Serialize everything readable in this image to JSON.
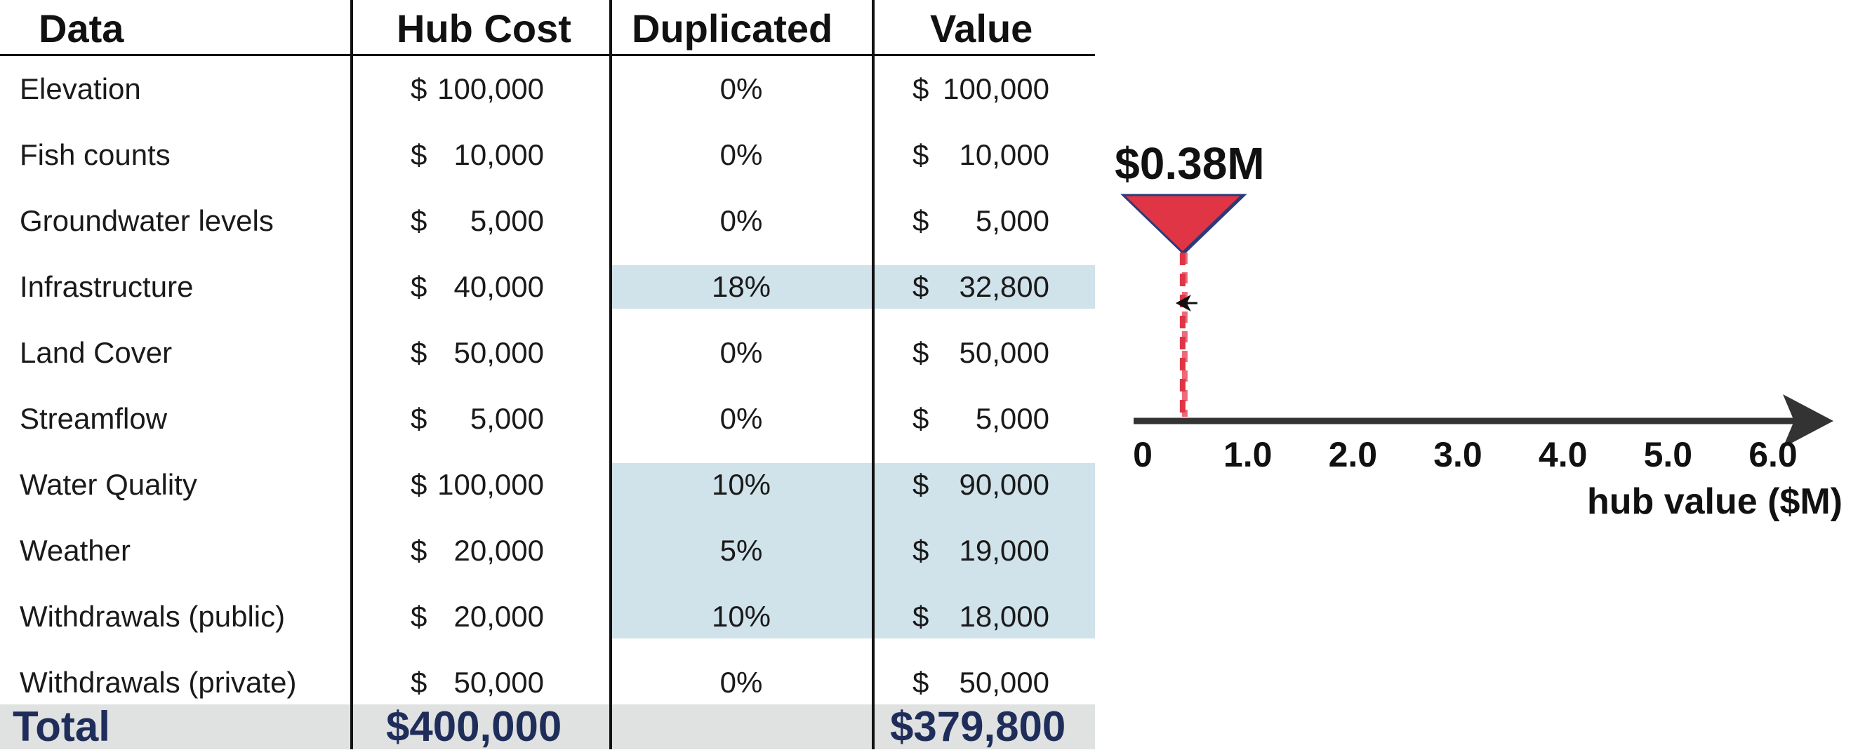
{
  "table": {
    "headers": [
      "Data",
      "Hub Cost",
      "Duplicated",
      "Value"
    ],
    "rows": [
      {
        "data": "Elevation",
        "cost_sym": "$",
        "cost_num": "100,000",
        "dup": "0%",
        "val_sym": "$",
        "val_num": "100,000",
        "highlight": false
      },
      {
        "data": "Fish counts",
        "cost_sym": "$",
        "cost_num": "10,000",
        "dup": "0%",
        "val_sym": "$",
        "val_num": "10,000",
        "highlight": false
      },
      {
        "data": "Groundwater levels",
        "cost_sym": "$",
        "cost_num": "5,000",
        "dup": "0%",
        "val_sym": "$",
        "val_num": "5,000",
        "highlight": false
      },
      {
        "data": "Infrastructure",
        "cost_sym": "$",
        "cost_num": "40,000",
        "dup": "18%",
        "val_sym": "$",
        "val_num": "32,800",
        "highlight": true
      },
      {
        "data": "Land Cover",
        "cost_sym": "$",
        "cost_num": "50,000",
        "dup": "0%",
        "val_sym": "$",
        "val_num": "50,000",
        "highlight": false
      },
      {
        "data": "Streamflow",
        "cost_sym": "$",
        "cost_num": "5,000",
        "dup": "0%",
        "val_sym": "$",
        "val_num": "5,000",
        "highlight": false
      },
      {
        "data": "Water Quality",
        "cost_sym": "$",
        "cost_num": "100,000",
        "dup": "10%",
        "val_sym": "$",
        "val_num": "90,000",
        "highlight": true
      },
      {
        "data": "Weather",
        "cost_sym": "$",
        "cost_num": "20,000",
        "dup": "5%",
        "val_sym": "$",
        "val_num": "19,000",
        "highlight": true
      },
      {
        "data": "Withdrawals (public)",
        "cost_sym": "$",
        "cost_num": "20,000",
        "dup": "10%",
        "val_sym": "$",
        "val_num": "18,000",
        "highlight": true
      },
      {
        "data": "Withdrawals (private)",
        "cost_sym": "$",
        "cost_num": "50,000",
        "dup": "0%",
        "val_sym": "$",
        "val_num": "50,000",
        "highlight": false
      }
    ],
    "total": {
      "label": "Total",
      "cost": "$400,000",
      "value": "$379,800"
    },
    "colors": {
      "highlight": "#d0e2ea",
      "total_bg": "#e0e1e1",
      "total_text": "#1f2d5a"
    }
  },
  "chart_data": {
    "type": "number-line",
    "xlabel": "hub value ($M)",
    "tick_labels": [
      "0",
      "1.0",
      "2.0",
      "3.0",
      "4.0",
      "5.0",
      "6.0"
    ],
    "ticks": [
      0,
      1,
      2,
      3,
      4,
      5,
      6
    ],
    "xlim": [
      0,
      6.45
    ],
    "markers": [
      {
        "value": 0.4,
        "label": "",
        "style": "light"
      },
      {
        "value": 0.38,
        "label": "$0.38M",
        "style": "dark"
      }
    ],
    "colors": {
      "marker": "#e03545",
      "marker_light": "#ec6a7a",
      "marker_outline": "#2b3a78",
      "axis": "#333333"
    }
  }
}
